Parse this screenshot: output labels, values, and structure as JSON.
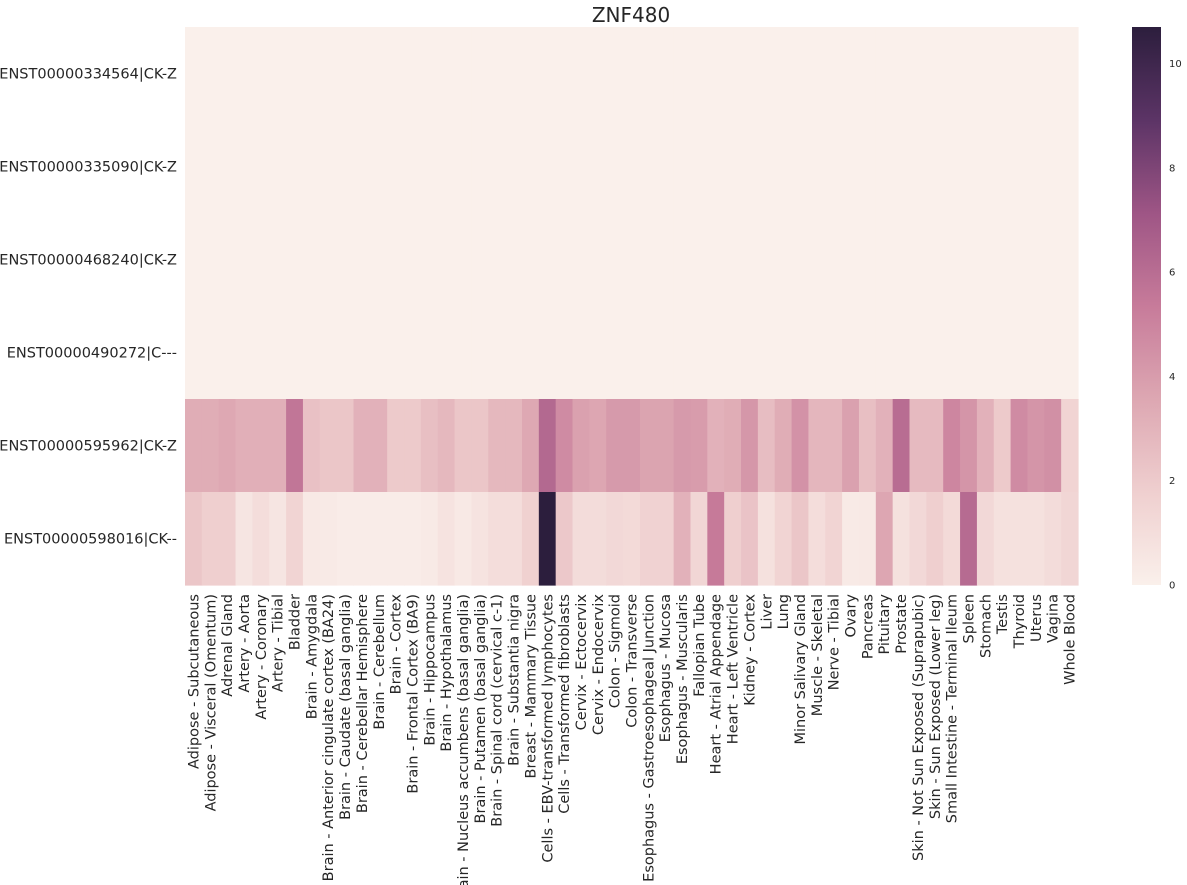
{
  "chart_data": {
    "type": "heatmap",
    "title": "ZNF480",
    "rows": [
      "ENST00000334564|CK-Z",
      "ENST00000335090|CK-Z",
      "ENST00000468240|CK-Z",
      "ENST00000490272|C---",
      "ENST00000595962|CK-Z",
      "ENST00000598016|CK--"
    ],
    "columns": [
      "Adipose - Subcutaneous",
      "Adipose - Visceral (Omentum)",
      "Adrenal Gland",
      "Artery - Aorta",
      "Artery - Coronary",
      "Artery - Tibial",
      "Bladder",
      "Brain - Amygdala",
      "Brain - Anterior cingulate cortex (BA24)",
      "Brain - Caudate (basal ganglia)",
      "Brain - Cerebellar Hemisphere",
      "Brain - Cerebellum",
      "Brain - Cortex",
      "Brain - Frontal Cortex (BA9)",
      "Brain - Hippocampus",
      "Brain - Hypothalamus",
      "Brain - Nucleus accumbens (basal ganglia)",
      "Brain - Putamen (basal ganglia)",
      "Brain - Spinal cord (cervical c-1)",
      "Brain - Substantia nigra",
      "Breast - Mammary Tissue",
      "Cells - EBV-transformed lymphocytes",
      "Cells - Transformed fibroblasts",
      "Cervix - Ectocervix",
      "Cervix - Endocervix",
      "Colon - Sigmoid",
      "Colon - Transverse",
      "Esophagus - Gastroesophageal Junction",
      "Esophagus - Mucosa",
      "Esophagus - Muscularis",
      "Fallopian Tube",
      "Heart - Atrial Appendage",
      "Heart - Left Ventricle",
      "Kidney - Cortex",
      "Liver",
      "Lung",
      "Minor Salivary Gland",
      "Muscle - Skeletal",
      "Nerve - Tibial",
      "Ovary",
      "Pancreas",
      "Pituitary",
      "Prostate",
      "Skin - Not Sun Exposed (Suprapubic)",
      "Skin - Sun Exposed (Lower leg)",
      "Small Intestine - Terminal Ileum",
      "Spleen",
      "Stomach",
      "Testis",
      "Thyroid",
      "Uterus",
      "Vagina",
      "Whole Blood"
    ],
    "values": [
      [
        0,
        0,
        0,
        0,
        0,
        0,
        0,
        0,
        0,
        0,
        0,
        0,
        0,
        0,
        0,
        0,
        0,
        0,
        0,
        0,
        0,
        0,
        0,
        0,
        0,
        0,
        0,
        0,
        0,
        0,
        0,
        0,
        0,
        0,
        0,
        0,
        0,
        0,
        0,
        0,
        0,
        0,
        0,
        0,
        0,
        0,
        0,
        0,
        0,
        0,
        0,
        0,
        0
      ],
      [
        0,
        0,
        0,
        0,
        0,
        0,
        0,
        0,
        0,
        0,
        0,
        0,
        0,
        0,
        0,
        0,
        0,
        0,
        0,
        0,
        0,
        0,
        0,
        0,
        0,
        0,
        0,
        0,
        0,
        0,
        0,
        0,
        0,
        0,
        0,
        0,
        0,
        0,
        0,
        0,
        0,
        0,
        0,
        0,
        0,
        0,
        0,
        0,
        0,
        0,
        0,
        0,
        0
      ],
      [
        0,
        0,
        0,
        0,
        0,
        0,
        0,
        0,
        0,
        0,
        0,
        0,
        0,
        0,
        0,
        0,
        0,
        0,
        0,
        0,
        0,
        0,
        0,
        0,
        0,
        0,
        0,
        0,
        0,
        0,
        0,
        0,
        0,
        0,
        0,
        0,
        0,
        0,
        0,
        0,
        0,
        0,
        0,
        0,
        0,
        0,
        0,
        0,
        0,
        0,
        0,
        0,
        0
      ],
      [
        0,
        0,
        0,
        0,
        0,
        0,
        0,
        0,
        0,
        0,
        0,
        0,
        0,
        0,
        0,
        0,
        0,
        0,
        0,
        0,
        0,
        0,
        0,
        0,
        0,
        0,
        0,
        0,
        0,
        0,
        0,
        0,
        0,
        0,
        0,
        0,
        0,
        0,
        0,
        0,
        0,
        0,
        0,
        0,
        0,
        0,
        0,
        0,
        0,
        0,
        0,
        0,
        0
      ],
      [
        3.3,
        3.3,
        3.5,
        3.2,
        3.2,
        3.2,
        5.6,
        2.4,
        2.2,
        2.2,
        3.1,
        3.1,
        2.0,
        2.0,
        2.5,
        2.8,
        2.2,
        2.2,
        2.8,
        2.8,
        3.5,
        6.2,
        4.7,
        3.8,
        3.6,
        4.1,
        4.1,
        3.7,
        3.7,
        4.1,
        4.0,
        3.1,
        3.3,
        4.2,
        2.6,
        3.3,
        4.4,
        2.9,
        2.9,
        3.8,
        2.5,
        3.1,
        6.0,
        2.7,
        2.7,
        4.9,
        4.3,
        3.1,
        2.0,
        4.7,
        4.3,
        4.5,
        1.5
      ],
      [
        2.2,
        1.8,
        1.8,
        0.6,
        1.0,
        0.6,
        1.5,
        0.4,
        0.3,
        0.2,
        0.2,
        0.2,
        0.2,
        0.2,
        0.3,
        0.7,
        0.4,
        0.7,
        1.0,
        1.0,
        1.7,
        10.7,
        2.1,
        1.1,
        1.1,
        1.3,
        1.2,
        1.6,
        1.6,
        3.1,
        1.4,
        5.4,
        1.8,
        2.3,
        0.8,
        1.5,
        2.2,
        1.0,
        1.5,
        0.3,
        0.4,
        3.6,
        0.8,
        1.3,
        1.8,
        1.2,
        6.1,
        1.3,
        0.8,
        0.8,
        0.8,
        1.1,
        1.4
      ]
    ],
    "vmin": 0,
    "vmax": 10.7,
    "colorbar_ticks": [
      0,
      2,
      4,
      6,
      8,
      10
    ],
    "colormap": [
      "#faf0eb",
      "#efcfcf",
      "#dda7b2",
      "#c77b9a",
      "#9e5585",
      "#5c3466",
      "#2c1e3d"
    ]
  }
}
